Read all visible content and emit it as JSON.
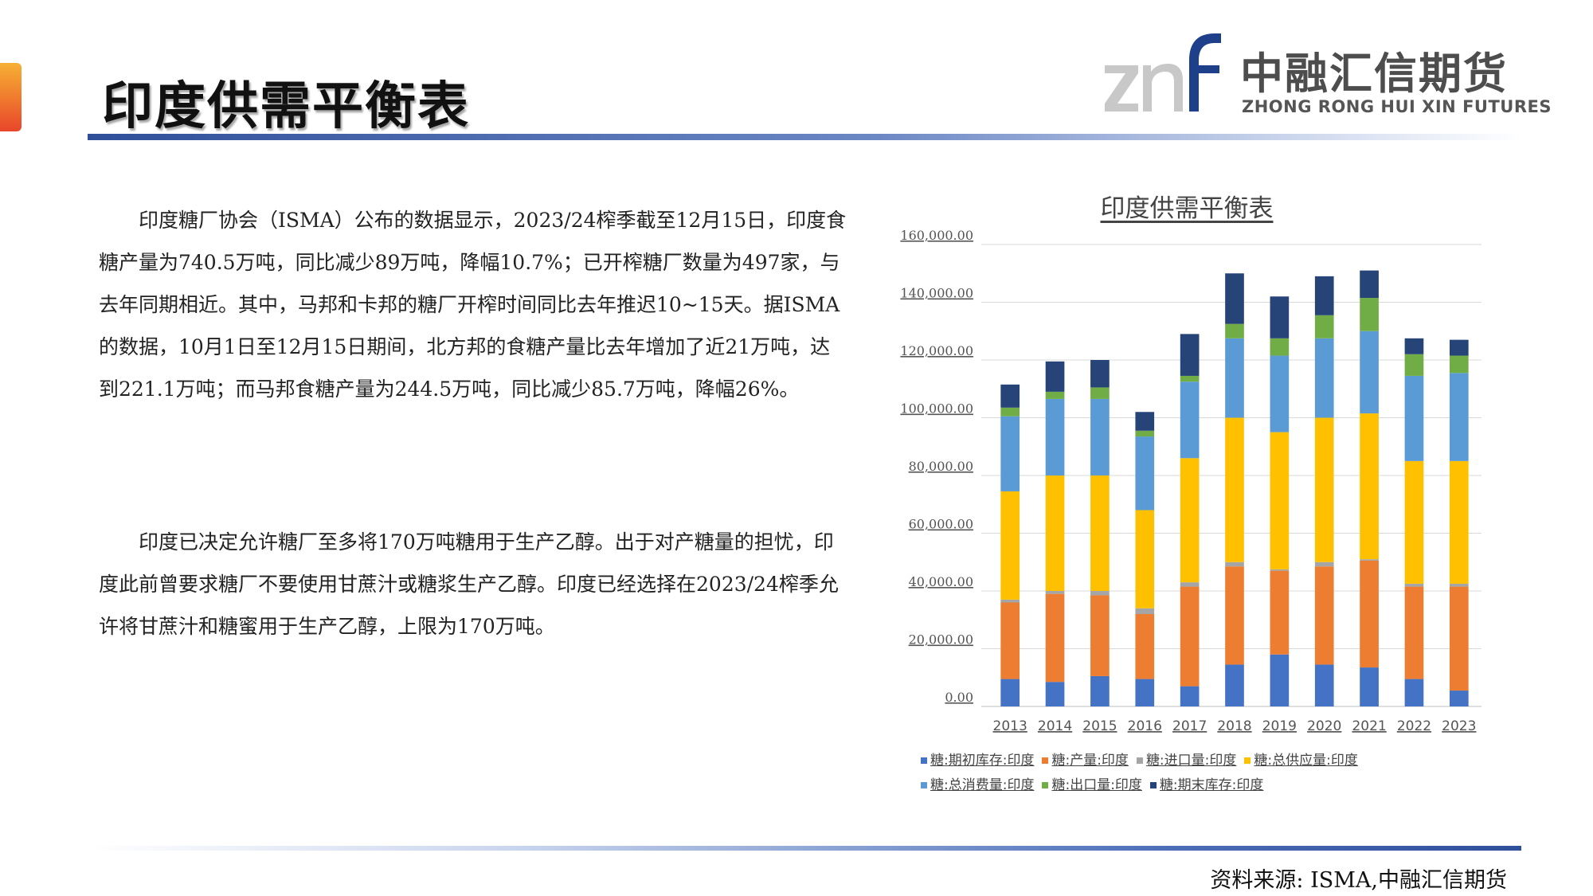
{
  "page": {
    "title": "印度供需平衡表",
    "logo_cn": "中融汇信期货",
    "logo_en": "ZHONG RONG HUI XIN FUTURES",
    "source": "资料来源: ISMA,中融汇信期货"
  },
  "paragraphs": [
    "印度糖厂协会（ISMA）公布的数据显示，2023/24榨季截至12月15日，印度食糖产量为740.5万吨，同比减少89万吨，降幅10.7%；已开榨糖厂数量为497家，与去年同期相近。其中，马邦和卡邦的糖厂开榨时间同比去年推迟10~15天。据ISMA的数据，10月1日至12月15日期间，北方邦的食糖产量比去年增加了近21万吨，达到221.1万吨；而马邦食糖产量为244.5万吨，同比减少85.7万吨，降幅26%。",
    "印度已决定允许糖厂至多将170万吨糖用于生产乙醇。出于对产糖量的担忧，印度此前曾要求糖厂不要使用甘蔗汁或糖浆生产乙醇。印度已经选择在2023/24榨季允许将甘蔗汁和糖蜜用于生产乙醇，上限为170万吨。"
  ],
  "colors": {
    "accent_top": "#f7b133",
    "accent_bottom": "#e8462a",
    "brand_blue": "#2f4f9a"
  },
  "chart_data": {
    "type": "bar",
    "stacked": true,
    "title": "印度供需平衡表",
    "xlabel": "",
    "ylabel": "",
    "ylim": [
      0,
      160000
    ],
    "ytick_step": 20000,
    "ytick_labels": [
      "0.00",
      "20,000.00",
      "40,000.00",
      "60,000.00",
      "80,000.00",
      "100,000.00",
      "120,000.00",
      "140,000.00",
      "160,000.00"
    ],
    "grid": true,
    "legend_position": "bottom",
    "categories": [
      "2013",
      "2014",
      "2015",
      "2016",
      "2017",
      "2018",
      "2019",
      "2020",
      "2021",
      "2022",
      "2023"
    ],
    "series": [
      {
        "name": "糖:期初库存:印度",
        "color": "#4472c4",
        "values": [
          9500,
          8500,
          10500,
          9500,
          7000,
          14500,
          18000,
          14500,
          13500,
          9500,
          5500
        ]
      },
      {
        "name": "糖:产量:印度",
        "color": "#ed7d31",
        "values": [
          26500,
          30500,
          28000,
          22500,
          34500,
          34000,
          29000,
          34000,
          37000,
          32000,
          36000
        ]
      },
      {
        "name": "糖:进口量:印度",
        "color": "#a5a5a5",
        "values": [
          1000,
          1000,
          1500,
          2000,
          1500,
          1500,
          500,
          1500,
          500,
          1000,
          1000
        ]
      },
      {
        "name": "糖:总供应量:印度",
        "color": "#ffc000",
        "values": [
          37500,
          40000,
          40000,
          34000,
          43000,
          50000,
          47500,
          50000,
          50500,
          42500,
          42500
        ]
      },
      {
        "name": "糖:总消费量:印度",
        "color": "#5b9bd5",
        "values": [
          26000,
          26500,
          26500,
          25500,
          26500,
          27500,
          26500,
          27500,
          28500,
          29500,
          30500
        ]
      },
      {
        "name": "糖:出口量:印度",
        "color": "#70ad47",
        "values": [
          3000,
          2500,
          4000,
          2000,
          2000,
          5000,
          6000,
          8000,
          11500,
          7500,
          6000
        ]
      },
      {
        "name": "糖:期末库存:印度",
        "color": "#264478",
        "values": [
          8000,
          10500,
          9500,
          6500,
          14500,
          17500,
          14500,
          13500,
          9500,
          5500,
          5500
        ]
      }
    ]
  }
}
